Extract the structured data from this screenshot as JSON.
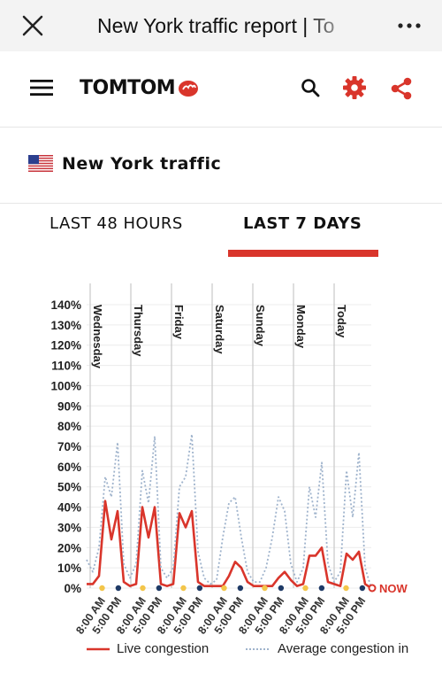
{
  "window": {
    "title": "New York traffic report | To",
    "close_icon": "close-icon",
    "more_icon": "more-horizontal-icon"
  },
  "header": {
    "brand": "TOMTOM",
    "menu_icon": "hamburger-menu-icon",
    "search_icon": "search-icon",
    "settings_icon": "gear-icon",
    "share_icon": "share-icon",
    "accent_color": "#d9352b"
  },
  "location": {
    "flag_icon": "us-flag-icon",
    "title": "New York traffic"
  },
  "tabs": [
    {
      "label": "LAST 48 HOURS",
      "active": false
    },
    {
      "label": "LAST 7 DAYS",
      "active": true
    }
  ],
  "chart_data": {
    "type": "line",
    "ylim": [
      0,
      140
    ],
    "yticks": [
      "140%",
      "130%",
      "120%",
      "110%",
      "100%",
      "90%",
      "80%",
      "70%",
      "60%",
      "50%",
      "40%",
      "30%",
      "20%",
      "10%",
      "0%"
    ],
    "days": [
      "Wednesday",
      "Thursday",
      "Friday",
      "Saturday",
      "Sunday",
      "Monday",
      "Today"
    ],
    "x_tick_labels": [
      "8:00 AM",
      "5:00 PM"
    ],
    "now_label": "NOW",
    "legend_position": "bottom",
    "grid": true,
    "series": [
      {
        "name": "Live congestion",
        "color": "#d9352b",
        "style": "solid",
        "values": [
          2,
          2,
          6,
          43,
          24,
          38,
          3,
          1,
          2,
          40,
          25,
          40,
          2,
          1,
          2,
          37,
          30,
          38,
          3,
          1,
          1,
          1,
          1,
          6,
          13,
          10,
          3,
          1,
          1,
          1,
          1,
          5,
          8,
          4,
          1,
          2,
          16,
          16,
          20,
          3,
          2,
          1,
          17,
          14,
          18,
          2,
          0
        ]
      },
      {
        "name": "Average congestion in",
        "color": "#9fb3cc",
        "style": "dotted",
        "values": [
          14,
          8,
          20,
          55,
          45,
          72,
          12,
          5,
          12,
          58,
          42,
          75,
          10,
          5,
          10,
          50,
          55,
          76,
          18,
          5,
          2,
          4,
          25,
          42,
          45,
          25,
          8,
          3,
          3,
          10,
          25,
          45,
          38,
          12,
          3,
          10,
          50,
          35,
          62,
          12,
          3,
          8,
          58,
          35,
          67,
          10,
          0
        ]
      }
    ],
    "markers": {
      "am_color": "#f3c54a",
      "pm_color": "#1e3a66"
    }
  },
  "legend": {
    "live": "Live congestion",
    "average": "Average congestion in"
  }
}
